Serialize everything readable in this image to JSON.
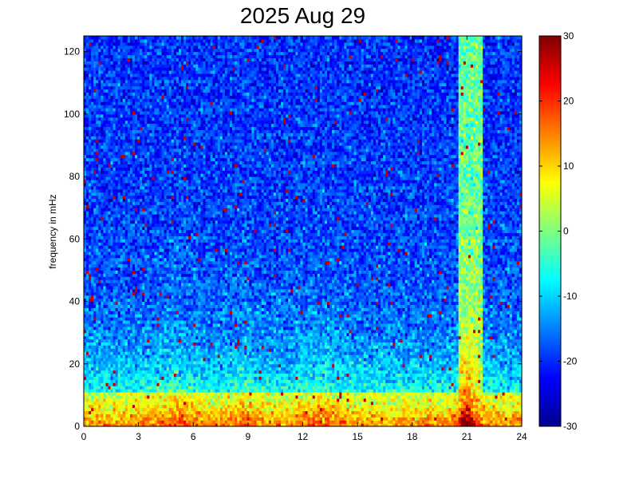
{
  "chart_data": {
    "type": "heatmap",
    "title": "2025 Aug 29",
    "xlabel": "",
    "ylabel": "frequency in mHz",
    "x_ticks": [
      "0",
      "3",
      "6",
      "9",
      "12",
      "15",
      "18",
      "21",
      "24"
    ],
    "xlim": [
      0,
      24
    ],
    "y_ticks": [
      "0",
      "20",
      "40",
      "60",
      "80",
      "100",
      "120"
    ],
    "ylim": [
      0,
      125
    ],
    "colorbar": {
      "ticks": [
        "-30",
        "-20",
        "-10",
        "0",
        "10",
        "20",
        "30"
      ],
      "range": [
        -30,
        30
      ],
      "colormap": "jet"
    },
    "features": [
      {
        "description": "strong low-frequency band",
        "freq_range_mHz": [
          0,
          10
        ],
        "time_range_h": [
          0,
          24
        ],
        "level": 25
      },
      {
        "description": "broadband burst",
        "time_range_h": [
          20.5,
          21.8
        ],
        "freq_range_mHz": [
          0,
          125
        ],
        "peak_level": 30,
        "peak_time_h": 21,
        "peak_freq_mHz": 5
      }
    ]
  }
}
